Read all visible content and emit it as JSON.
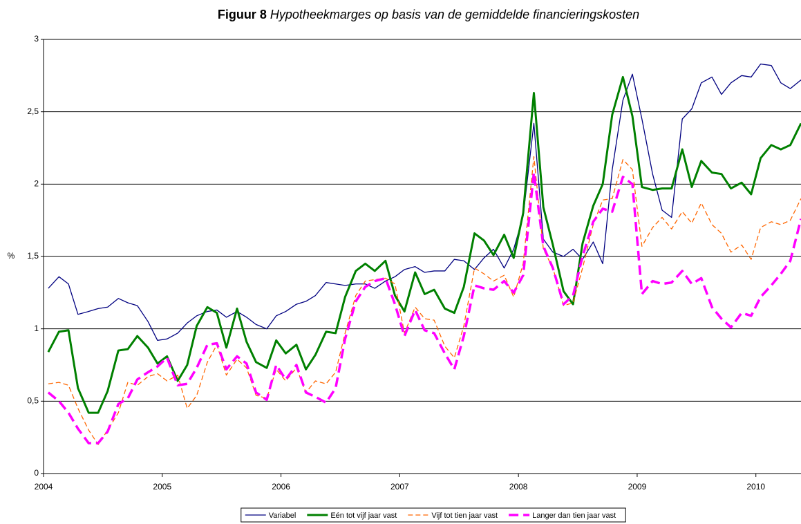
{
  "chart_data": {
    "type": "line",
    "title_label": "Figuur 8",
    "title": "Hypotheekmarges op basis van de gemiddelde financieringskosten",
    "y_label": "%",
    "xlim": [
      2004,
      2010.38
    ],
    "xticks": [
      2004,
      2005,
      2006,
      2007,
      2008,
      2009,
      2010
    ],
    "ylim": [
      0,
      3
    ],
    "yticks": [
      0,
      {
        "value": 0.5,
        "label": "0,5"
      },
      1,
      {
        "value": 1.5,
        "label": "1,5"
      },
      2,
      {
        "value": 2.5,
        "label": "2,5"
      },
      3
    ],
    "grid": true,
    "legend": "bottom",
    "x": [
      2004.04,
      2004.13,
      2004.21,
      2004.29,
      2004.38,
      2004.46,
      2004.54,
      2004.63,
      2004.71,
      2004.79,
      2004.88,
      2004.96,
      2005.04,
      2005.13,
      2005.21,
      2005.29,
      2005.38,
      2005.46,
      2005.54,
      2005.63,
      2005.71,
      2005.79,
      2005.88,
      2005.96,
      2006.04,
      2006.13,
      2006.21,
      2006.29,
      2006.38,
      2006.46,
      2006.54,
      2006.63,
      2006.71,
      2006.79,
      2006.88,
      2006.96,
      2007.04,
      2007.13,
      2007.21,
      2007.29,
      2007.38,
      2007.46,
      2007.54,
      2007.63,
      2007.71,
      2007.79,
      2007.88,
      2007.96,
      2008.04,
      2008.13,
      2008.21,
      2008.29,
      2008.38,
      2008.46,
      2008.54,
      2008.63,
      2008.71,
      2008.79,
      2008.88,
      2008.96,
      2009.04,
      2009.13,
      2009.21,
      2009.29,
      2009.38,
      2009.46,
      2009.54,
      2009.63,
      2009.71,
      2009.79,
      2009.88,
      2009.96,
      2010.04,
      2010.13,
      2010.21,
      2010.29,
      2010.38
    ],
    "series": [
      {
        "name": "Variabel",
        "color": "#000080",
        "width": 1.3,
        "dash": "none",
        "values": [
          1.28,
          1.36,
          1.31,
          1.1,
          1.12,
          1.14,
          1.15,
          1.21,
          1.18,
          1.16,
          1.05,
          0.92,
          0.93,
          0.97,
          1.04,
          1.09,
          1.12,
          1.13,
          1.08,
          1.12,
          1.08,
          1.03,
          1.0,
          1.09,
          1.12,
          1.17,
          1.19,
          1.23,
          1.32,
          1.31,
          1.3,
          1.31,
          1.31,
          1.28,
          1.33,
          1.36,
          1.41,
          1.43,
          1.39,
          1.4,
          1.4,
          1.48,
          1.47,
          1.41,
          1.49,
          1.55,
          1.42,
          1.55,
          1.78,
          2.42,
          1.62,
          1.53,
          1.5,
          1.55,
          1.48,
          1.6,
          1.45,
          2.1,
          2.58,
          2.76,
          2.45,
          2.07,
          1.82,
          1.77,
          2.45,
          2.52,
          2.7,
          2.74,
          2.62,
          2.7,
          2.75,
          2.74,
          2.83,
          2.82,
          2.7,
          2.66,
          2.72
        ]
      },
      {
        "name": "Eén tot vijf jaar vast",
        "color": "#008000",
        "width": 3,
        "dash": "none",
        "values": [
          0.84,
          0.98,
          0.99,
          0.59,
          0.42,
          0.42,
          0.57,
          0.85,
          0.86,
          0.95,
          0.87,
          0.76,
          0.81,
          0.64,
          0.75,
          1.02,
          1.15,
          1.11,
          0.87,
          1.14,
          0.91,
          0.77,
          0.73,
          0.92,
          0.83,
          0.89,
          0.72,
          0.82,
          0.98,
          0.97,
          1.22,
          1.4,
          1.45,
          1.4,
          1.47,
          1.23,
          1.12,
          1.39,
          1.24,
          1.27,
          1.14,
          1.11,
          1.29,
          1.66,
          1.61,
          1.51,
          1.65,
          1.49,
          1.8,
          2.63,
          1.84,
          1.58,
          1.26,
          1.17,
          1.59,
          1.85,
          2.0,
          2.48,
          2.74,
          2.47,
          1.98,
          1.96,
          1.97,
          1.97,
          2.24,
          1.98,
          2.16,
          2.08,
          2.07,
          1.97,
          2.01,
          1.93,
          2.18,
          2.27,
          2.24,
          2.27,
          2.42
        ]
      },
      {
        "name": "Vijf tot tien jaar vast",
        "color": "#ff6600",
        "width": 1.3,
        "dash": "7,4",
        "values": [
          0.62,
          0.63,
          0.61,
          0.45,
          0.3,
          0.2,
          0.3,
          0.42,
          0.63,
          0.61,
          0.67,
          0.69,
          0.64,
          0.68,
          0.45,
          0.54,
          0.77,
          0.89,
          0.68,
          0.79,
          0.73,
          0.54,
          0.52,
          0.72,
          0.64,
          0.73,
          0.56,
          0.64,
          0.62,
          0.7,
          0.97,
          1.23,
          1.33,
          1.34,
          1.35,
          1.31,
          0.97,
          1.15,
          1.07,
          1.06,
          0.88,
          0.8,
          1.02,
          1.42,
          1.38,
          1.33,
          1.37,
          1.22,
          1.45,
          2.19,
          1.55,
          1.42,
          1.16,
          1.18,
          1.42,
          1.72,
          1.89,
          1.9,
          2.17,
          2.1,
          1.57,
          1.7,
          1.77,
          1.69,
          1.81,
          1.73,
          1.87,
          1.72,
          1.66,
          1.53,
          1.58,
          1.48,
          1.7,
          1.74,
          1.72,
          1.75,
          1.9
        ]
      },
      {
        "name": "Langer dan tien jaar vast",
        "color": "#ff00ff",
        "width": 3.5,
        "dash": "14,7",
        "values": [
          0.56,
          0.5,
          0.42,
          0.31,
          0.21,
          0.21,
          0.29,
          0.48,
          0.52,
          0.65,
          0.7,
          0.74,
          0.8,
          0.61,
          0.62,
          0.73,
          0.89,
          0.9,
          0.72,
          0.81,
          0.76,
          0.56,
          0.51,
          0.75,
          0.65,
          0.75,
          0.56,
          0.53,
          0.49,
          0.59,
          0.93,
          1.19,
          1.29,
          1.33,
          1.35,
          1.17,
          0.95,
          1.13,
          0.99,
          0.97,
          0.83,
          0.72,
          0.95,
          1.3,
          1.28,
          1.27,
          1.33,
          1.25,
          1.37,
          2.08,
          1.57,
          1.42,
          1.17,
          1.23,
          1.5,
          1.74,
          1.83,
          1.81,
          2.05,
          2.0,
          1.24,
          1.33,
          1.31,
          1.32,
          1.4,
          1.31,
          1.35,
          1.15,
          1.07,
          1.01,
          1.11,
          1.09,
          1.22,
          1.3,
          1.38,
          1.47,
          1.76
        ]
      }
    ]
  }
}
